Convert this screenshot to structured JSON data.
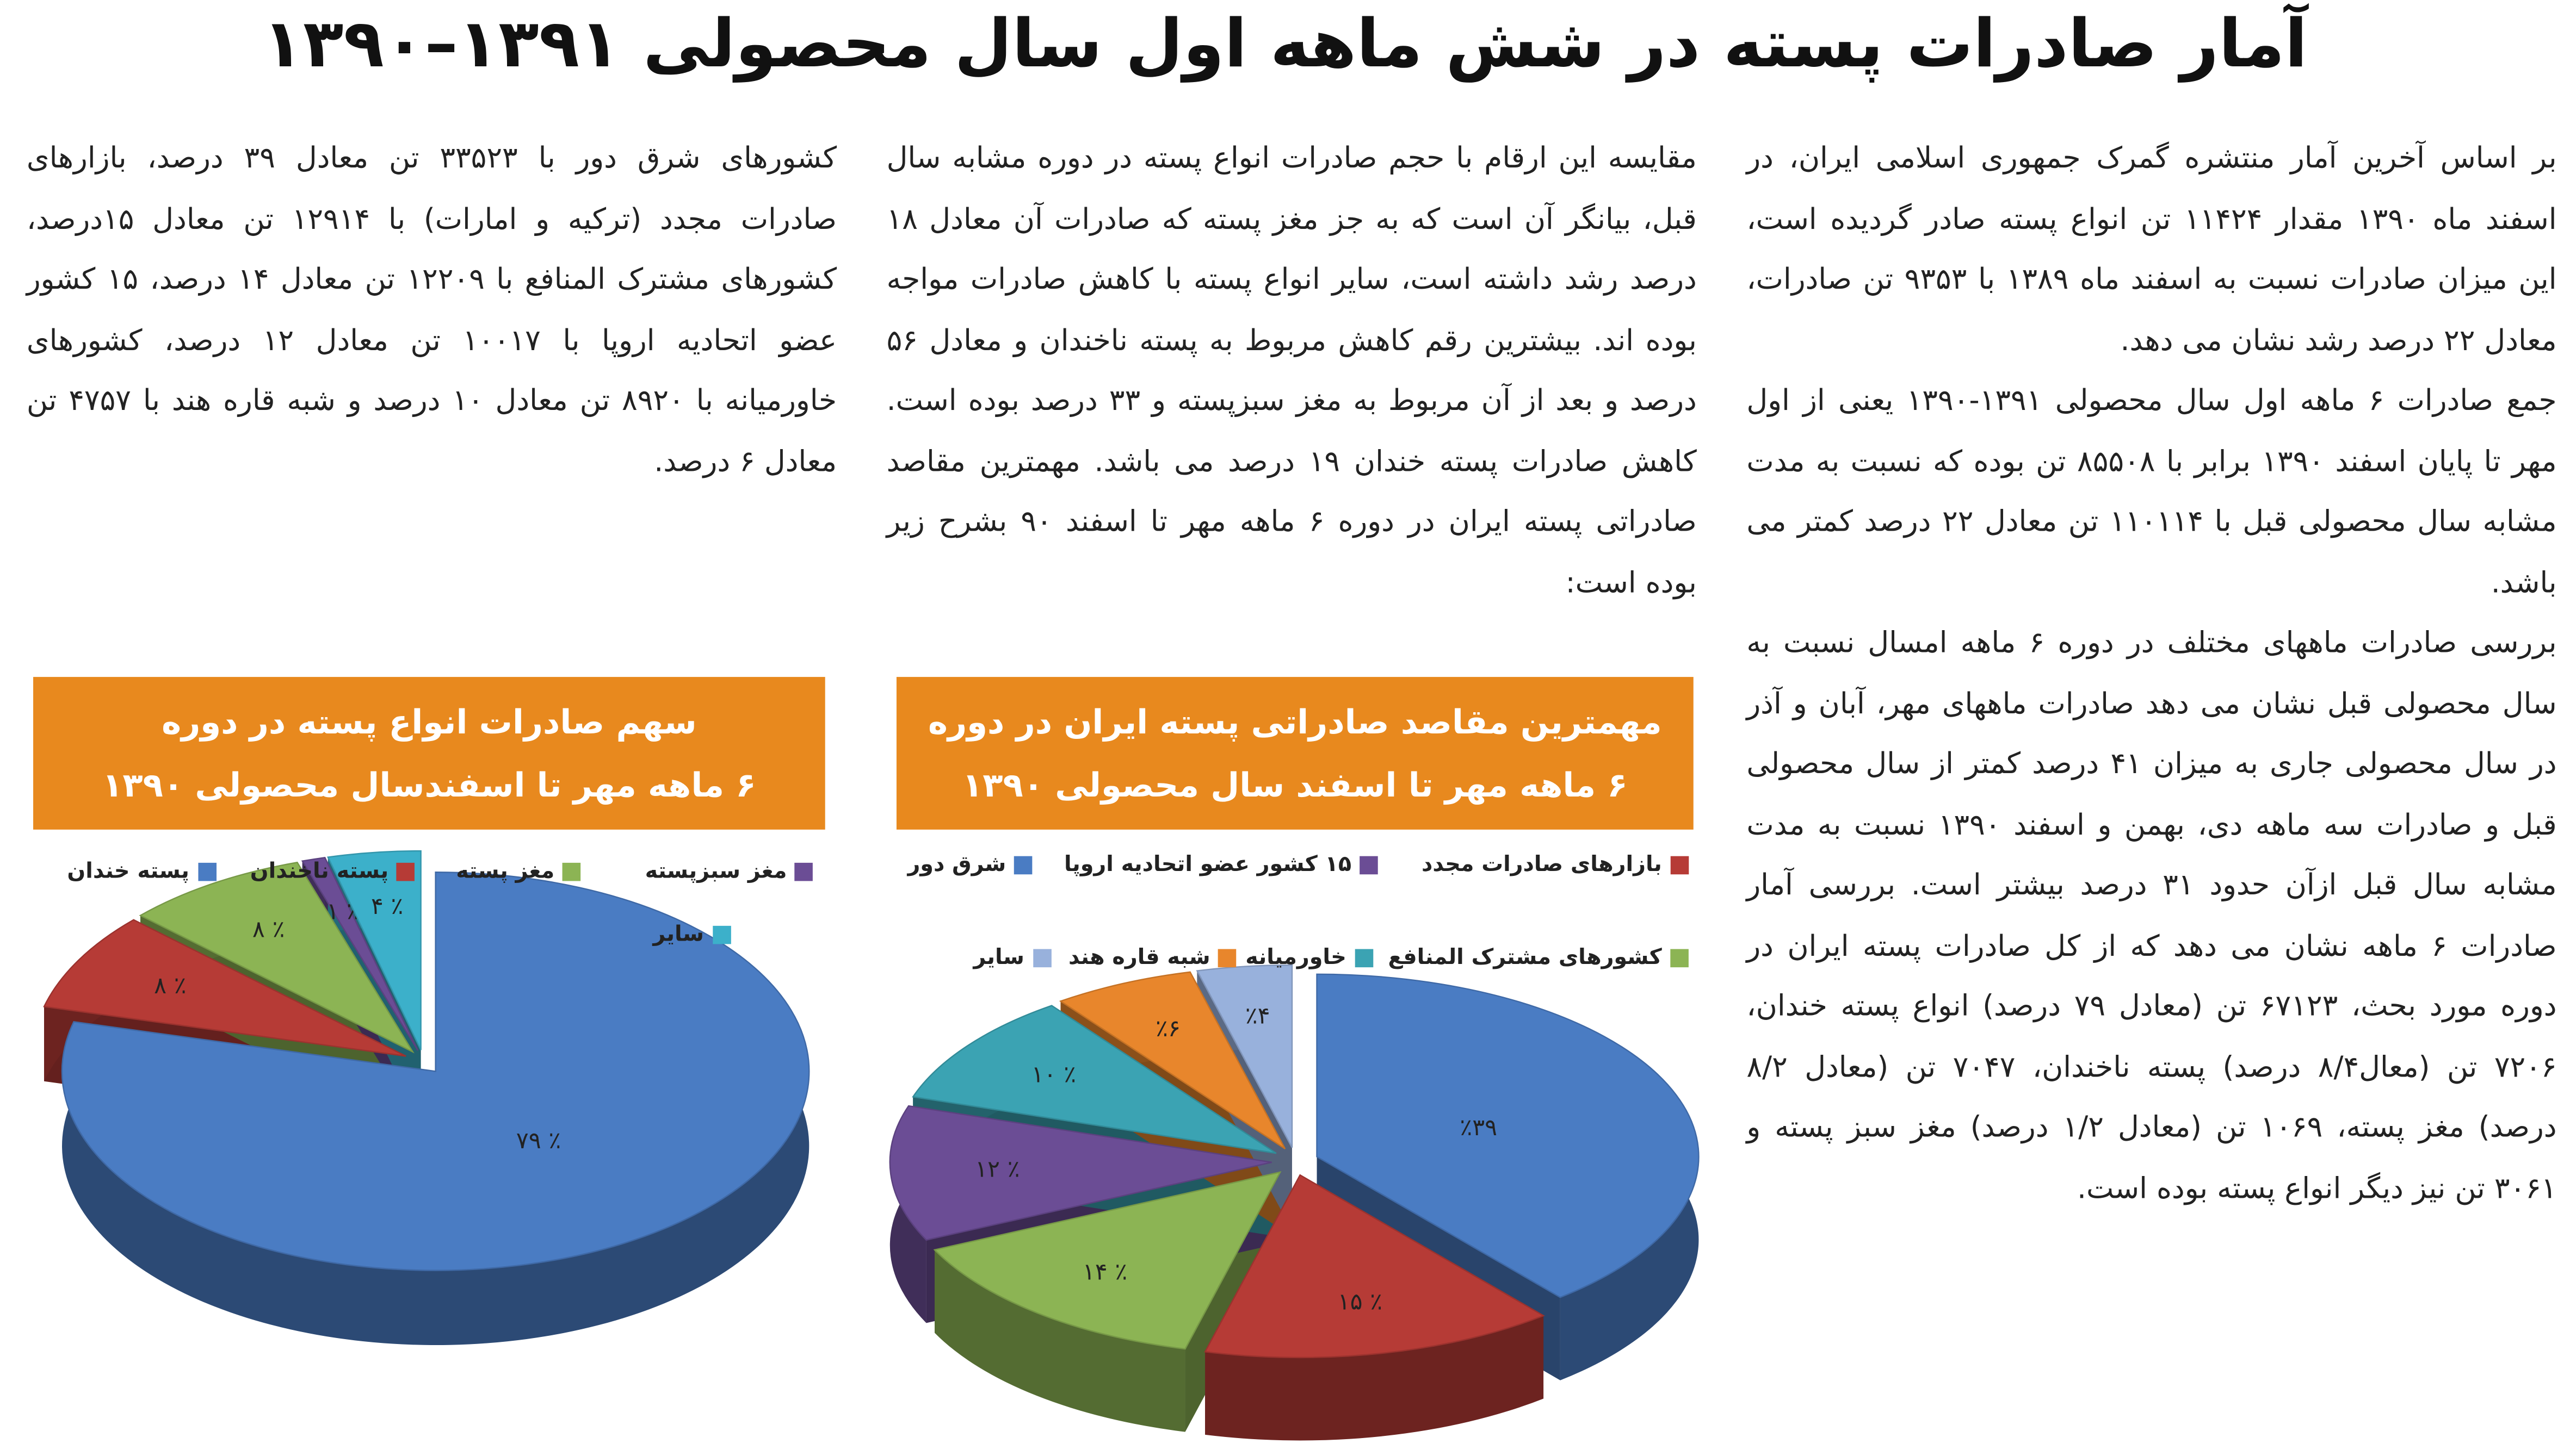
{
  "title": "آمار صادرات پسته در شش ماهه اول سال محصولی ۱۳۹۱–۱۳۹۰",
  "columns": [
    {
      "paragraphs": [
        "بر اساس آخرین آمار منتشره گمرک جمهوری اسلامی ایران، در اسفند ماه ۱۳۹۰ مقدار ۱۱۴۲۴ تن انواع پسته صادر گردیده است، این میزان صادرات نسبت به اسفند ماه ۱۳۸۹ با ۹۳۵۳ تن صادرات، معادل ۲۲ درصد رشد نشان می دهد.",
        "جمع صادرات ۶ ماهه اول سال محصولی ۱۳۹۱-۱۳۹۰ یعنی از اول مهر تا پایان اسفند ۱۳۹۰ برابر با ۸۵۵۰۸ تن بوده که نسبت به مدت مشابه سال محصولی قبل با ۱۱۰۱۱۴ تن معادل ۲۲ درصد کمتر می باشد.",
        "بررسی صادرات ماههای مختلف در دوره ۶ ماهه امسال نسبت به سال محصولی قبل نشان می دهد صادرات ماههای مهر، آبان و آذر در سال محصولی جاری به میزان ۴۱ درصد کمتر از سال محصولی قبل و صادرات سه ماهه دی، بهمن و اسفند ۱۳۹۰ نسبت به مدت مشابه سال قبل ازآن حدود ۳۱ درصد بیشتر است. بررسی آمار صادرات ۶ ماهه نشان می دهد که از کل صادرات پسته ایران در دوره مورد بحث، ۶۷۱۲۳ تن (معادل ۷۹ درصد) انواع پسته خندان، ۷۲۰۶ تن (معال۸/۴ درصد) پسته ناخندان، ۷۰۴۷ تن (معادل ۸/۲ درصد) مغز پسته، ۱۰۶۹ تن (معادل ۱/۲ درصد) مغز سبز پسته و ۳۰۶۱ تن نیز دیگر انواع پسته بوده است."
      ]
    },
    {
      "paragraphs": [
        "مقایسه این ارقام با حجم صادرات انواع پسته در دوره مشابه سال قبل، بیانگر آن است که به جز مغز پسته که صادرات آن معادل ۱۸ درصد رشد داشته است، سایر انواع پسته با کاهش صادرات مواجه بوده اند. بیشترین رقم کاهش مربوط به پسته ناخندان و معادل ۵۶ درصد و بعد از آن مربوط به مغز سبزپسته و ۳۳ درصد بوده است. کاهش صادرات پسته خندان ۱۹ درصد می باشد. مهمترین مقاصد صادراتی پسته ایران در دوره ۶ ماهه مهر تا اسفند ۹۰ بشرح زیر بوده است:"
      ]
    },
    {
      "paragraphs": [
        "کشورهای شرق دور با ۳۳۵۲۳ تن معادل ۳۹ درصد، بازارهای صادرات مجدد (ترکیه و امارات) با ۱۲۹۱۴ تن معادل ۱۵درصد، کشورهای مشترک المنافع با ۱۲۲۰۹ تن معادل ۱۴ درصد، ۱۵ کشور عضو اتحادیه اروپا با ۱۰۰۱۷ تن معادل ۱۲ درصد، کشورهای خاورمیانه با ۸۹۲۰ تن معادل ۱۰ درصد و شبه قاره هند با ۴۷۵۷ تن معادل ۶ درصد."
      ]
    }
  ],
  "chart_data": [
    {
      "type": "pie",
      "title": [
        "سهم صادرات انواع پسته در دوره",
        "۶ ماهه مهر تا اسفندسال محصولی ۱۳۹۰"
      ],
      "categories": [
        "پسته خندان",
        "پسته ناخندان",
        "مغز پسته",
        "مغز سبزپسته",
        "سایر"
      ],
      "values": [
        79,
        8,
        8,
        1,
        4
      ],
      "value_labels": [
        "٪ ۷۹",
        "٪ ۸",
        "٪ ۸",
        "٪ ۱",
        "٪ ۴"
      ],
      "colors": [
        "#4a7cc3",
        "#b63b36",
        "#8cb454",
        "#6b4d95",
        "#3cb0ca"
      ]
    },
    {
      "type": "pie",
      "title": [
        "مهمترین مقاصد صادراتی پسته ایران در دوره",
        "۶ ماهه مهر تا اسفند سال محصولی ۱۳۹۰"
      ],
      "categories": [
        "شرق دور",
        "بازارهای صادرات مجدد",
        "کشورهای مشترک المنافع",
        "۱۵ کشور عضو اتحادیه اروپا",
        "خاورمیانه",
        "شبه قاره هند",
        "سایر"
      ],
      "values": [
        39,
        15,
        14,
        12,
        10,
        6,
        4
      ],
      "value_labels": [
        "٪۳۹",
        "٪ ۱۵",
        "٪ ۱۴",
        "٪ ۱۲",
        "٪ ۱۰",
        "٪۶",
        "٪۴"
      ],
      "colors": [
        "#4a7cc3",
        "#b63b36",
        "#8cb454",
        "#6b4d95",
        "#3ba3b3",
        "#e8862c",
        "#98b1dc"
      ]
    }
  ]
}
